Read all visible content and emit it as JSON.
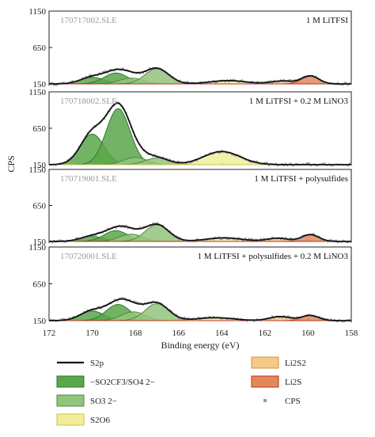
{
  "chart_data": {
    "type": "line",
    "ylabel": "CPS",
    "xlabel": "Binding energy (eV)",
    "x_range": [
      172,
      158
    ],
    "x_ticks": [
      172,
      170,
      168,
      166,
      164,
      162,
      160,
      158
    ],
    "y_ticks": [
      150,
      650,
      1150
    ],
    "ylim": [
      150,
      1150
    ],
    "grid": false,
    "panels": [
      {
        "file": "170717002.SLE",
        "label": "1 M LiTFSI",
        "components": [
          {
            "series": "SO2CF3",
            "center": 170.0,
            "height": 90,
            "sigma": 0.55
          },
          {
            "series": "SO2CF3",
            "center": 168.9,
            "height": 150,
            "sigma": 0.55
          },
          {
            "series": "SO3",
            "center": 168.2,
            "height": 80,
            "sigma": 0.55
          },
          {
            "series": "SO3",
            "center": 167.0,
            "height": 210,
            "sigma": 0.55
          },
          {
            "series": "S2O6",
            "center": 163.7,
            "height": 45,
            "sigma": 0.85
          },
          {
            "series": "Li2S2",
            "center": 161.2,
            "height": 40,
            "sigma": 0.5
          },
          {
            "series": "Li2S",
            "center": 159.9,
            "height": 110,
            "sigma": 0.4
          }
        ]
      },
      {
        "file": "170718002.SLE",
        "label": "1 M LiTFSI + 0.2 M LiNO3",
        "components": [
          {
            "series": "SO2CF3",
            "center": 170.0,
            "height": 420,
            "sigma": 0.55
          },
          {
            "series": "SO2CF3",
            "center": 168.8,
            "height": 770,
            "sigma": 0.55
          },
          {
            "series": "SO3",
            "center": 168.0,
            "height": 100,
            "sigma": 0.55
          },
          {
            "series": "SO3",
            "center": 167.0,
            "height": 90,
            "sigma": 0.55
          },
          {
            "series": "S2O6",
            "center": 164.0,
            "height": 180,
            "sigma": 0.85
          }
        ]
      },
      {
        "file": "170719001.SLE",
        "label": "1 M LiTFSI + polysulfides",
        "components": [
          {
            "series": "SO2CF3",
            "center": 170.0,
            "height": 70,
            "sigma": 0.55
          },
          {
            "series": "SO2CF3",
            "center": 168.9,
            "height": 150,
            "sigma": 0.55
          },
          {
            "series": "SO3",
            "center": 168.2,
            "height": 100,
            "sigma": 0.55
          },
          {
            "series": "SO3",
            "center": 167.0,
            "height": 230,
            "sigma": 0.55
          },
          {
            "series": "S2O6",
            "center": 163.9,
            "height": 50,
            "sigma": 0.85
          },
          {
            "series": "Li2S2",
            "center": 161.4,
            "height": 45,
            "sigma": 0.5
          },
          {
            "series": "Li2S",
            "center": 159.9,
            "height": 95,
            "sigma": 0.4
          }
        ]
      },
      {
        "file": "170720001.SLE",
        "label": "1 M LiTFSI + polysulfides + 0.2 M LiNO3",
        "components": [
          {
            "series": "SO2CF3",
            "center": 170.0,
            "height": 130,
            "sigma": 0.55
          },
          {
            "series": "SO2CF3",
            "center": 168.8,
            "height": 220,
            "sigma": 0.55
          },
          {
            "series": "SO3",
            "center": 168.1,
            "height": 120,
            "sigma": 0.55
          },
          {
            "series": "SO3",
            "center": 167.0,
            "height": 230,
            "sigma": 0.55
          },
          {
            "series": "S2O6",
            "center": 164.3,
            "height": 40,
            "sigma": 0.85
          },
          {
            "series": "Li2S2",
            "center": 161.3,
            "height": 55,
            "sigma": 0.5
          },
          {
            "series": "Li2S",
            "center": 159.9,
            "height": 70,
            "sigma": 0.4
          }
        ]
      }
    ],
    "legend": [
      {
        "key": "S2p",
        "label": "S2p",
        "kind": "line",
        "color": "#111111"
      },
      {
        "key": "SO2CF3",
        "label": "−SO2CF3/SO4 2−",
        "kind": "patch",
        "fill": "#5aa64a",
        "edge": "#2f7a2a"
      },
      {
        "key": "SO3",
        "label": "SO3 2−",
        "kind": "patch",
        "fill": "#93c47d",
        "edge": "#4d8a3b"
      },
      {
        "key": "S2O6",
        "label": "S2O6",
        "kind": "patch",
        "fill": "#f1ee9a",
        "edge": "#c9c24a"
      },
      {
        "key": "Li2S2",
        "label": "Li2S2",
        "kind": "patch",
        "fill": "#f5c98a",
        "edge": "#d49638"
      },
      {
        "key": "Li2S",
        "label": "Li2S",
        "kind": "patch",
        "fill": "#e08a5a",
        "edge": "#c8301e"
      },
      {
        "key": "CPS",
        "label": "CPS",
        "kind": "marker",
        "color": "#9a9a9a"
      }
    ]
  },
  "colors": {
    "SO2CF3": {
      "fill": "#5aa64a",
      "edge": "#2f7a2a"
    },
    "SO3": {
      "fill": "#93c47d",
      "edge": "#4d8a3b"
    },
    "S2O6": {
      "fill": "#f1ee9a",
      "edge": "#c9c24a"
    },
    "Li2S2": {
      "fill": "#f5c98a",
      "edge": "#d49638"
    },
    "Li2S": {
      "fill": "#e08a5a",
      "edge": "#c8301e"
    },
    "envelope": "#111111",
    "points": "#9a9a9a"
  }
}
